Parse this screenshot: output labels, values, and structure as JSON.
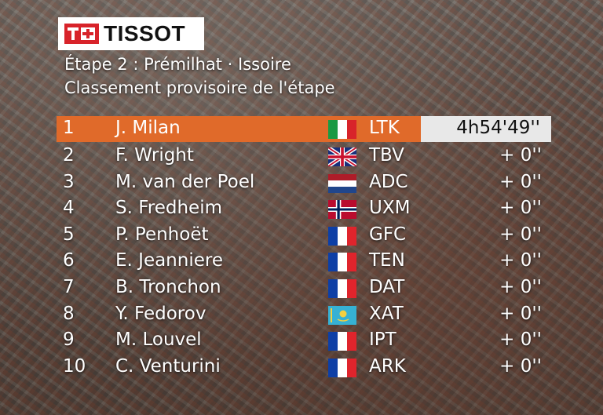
{
  "brand": {
    "logo_text": "TISSOT"
  },
  "header": {
    "title": "Étape 2 : Prémilhat · Issoire",
    "subtitle": "Classement provisoire de l'étape"
  },
  "standings": [
    {
      "pos": "1",
      "name": "J. Milan",
      "flag": "italy-flag-icon",
      "team": "LTK",
      "gap": "4h54'49''"
    },
    {
      "pos": "2",
      "name": "F. Wright",
      "flag": "uk-flag-icon",
      "team": "TBV",
      "gap": "+ 0''"
    },
    {
      "pos": "3",
      "name": "M. van der Poel",
      "flag": "netherlands-flag-icon",
      "team": "ADC",
      "gap": "+ 0''"
    },
    {
      "pos": "4",
      "name": "S. Fredheim",
      "flag": "norway-flag-icon",
      "team": "UXM",
      "gap": "+ 0''"
    },
    {
      "pos": "5",
      "name": "P. Penhoët",
      "flag": "france-flag-icon",
      "team": "GFC",
      "gap": "+ 0''"
    },
    {
      "pos": "6",
      "name": "E. Jeanniere",
      "flag": "france-flag-icon",
      "team": "TEN",
      "gap": "+ 0''"
    },
    {
      "pos": "7",
      "name": "B. Tronchon",
      "flag": "france-flag-icon",
      "team": "DAT",
      "gap": "+ 0''"
    },
    {
      "pos": "8",
      "name": "Y. Fedorov",
      "flag": "kazakhstan-flag-icon",
      "team": "XAT",
      "gap": "+ 0''"
    },
    {
      "pos": "9",
      "name": "M. Louvel",
      "flag": "france-flag-icon",
      "team": "IPT",
      "gap": "+ 0''"
    },
    {
      "pos": "10",
      "name": "C. Venturini",
      "flag": "france-flag-icon",
      "team": "ARK",
      "gap": "+ 0''"
    }
  ],
  "colors": {
    "leader_band": "#e06a2a",
    "time_box": "#e8e8e8",
    "brand_red": "#d8232a"
  }
}
